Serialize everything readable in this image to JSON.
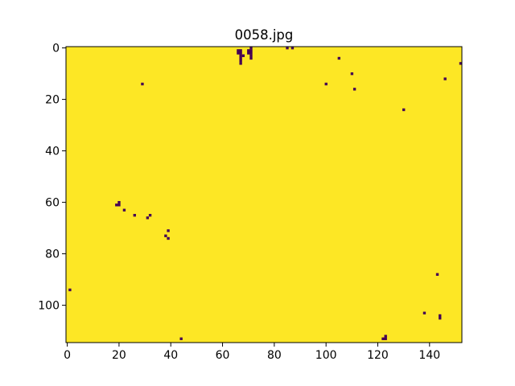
{
  "chart_data": {
    "type": "heatmap",
    "title": "0058.jpg",
    "xlabel": "",
    "ylabel": "",
    "grid": false,
    "x_range": [
      -0.5,
      152.5
    ],
    "y_range": [
      114.5,
      -0.5
    ],
    "y_axis_inverted": true,
    "x_ticks": [
      0,
      20,
      40,
      60,
      80,
      100,
      120,
      140
    ],
    "y_ticks": [
      0,
      20,
      40,
      60,
      80,
      100
    ],
    "x_tick_labels": [
      "0",
      "20",
      "40",
      "60",
      "80",
      "100",
      "120",
      "140"
    ],
    "y_tick_labels": [
      "0",
      "20",
      "40",
      "60",
      "80",
      "100"
    ],
    "colormap": "viridis",
    "background_value": 1,
    "background_color": "#fde725",
    "pixel_value": 0,
    "pixel_color": "#440154",
    "low_value_pixels": [
      [
        66,
        1
      ],
      [
        66,
        2
      ],
      [
        67,
        1
      ],
      [
        67,
        2
      ],
      [
        67,
        3
      ],
      [
        67,
        4
      ],
      [
        67,
        5
      ],
      [
        67,
        6
      ],
      [
        68,
        3
      ],
      [
        70,
        1
      ],
      [
        70,
        2
      ],
      [
        71,
        0
      ],
      [
        71,
        1
      ],
      [
        71,
        2
      ],
      [
        71,
        3
      ],
      [
        71,
        4
      ],
      [
        85,
        0
      ],
      [
        87,
        0
      ],
      [
        105,
        4
      ],
      [
        152,
        6
      ],
      [
        110,
        10
      ],
      [
        146,
        12
      ],
      [
        29,
        14
      ],
      [
        100,
        14
      ],
      [
        111,
        16
      ],
      [
        130,
        24
      ],
      [
        19,
        61
      ],
      [
        20,
        60
      ],
      [
        20,
        61
      ],
      [
        22,
        63
      ],
      [
        26,
        65
      ],
      [
        31,
        66
      ],
      [
        32,
        65
      ],
      [
        39,
        71
      ],
      [
        38,
        73
      ],
      [
        39,
        74
      ],
      [
        143,
        88
      ],
      [
        1,
        94
      ],
      [
        138,
        103
      ],
      [
        144,
        104
      ],
      [
        144,
        105
      ],
      [
        44,
        113
      ],
      [
        122,
        113
      ],
      [
        123,
        113
      ],
      [
        123,
        112
      ]
    ]
  }
}
